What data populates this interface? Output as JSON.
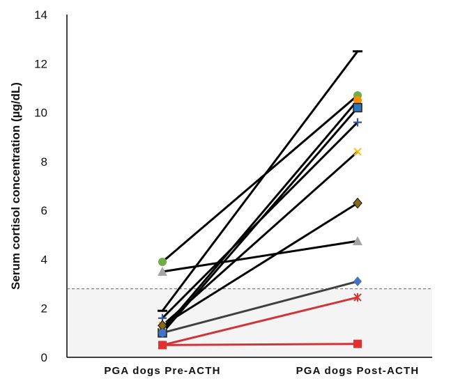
{
  "chart_data": {
    "type": "line",
    "title": "",
    "xlabel": "",
    "ylabel": "Serum cortisol concentration (µg/dL)",
    "categories": [
      "PGA dogs Pre-ACTH",
      "PGA dogs Post-ACTH"
    ],
    "ylim": [
      0,
      14
    ],
    "yticks": [
      0,
      2,
      4,
      6,
      8,
      10,
      12,
      14
    ],
    "threshold": {
      "value": 2.8,
      "style": "dashed",
      "shaded_below": true,
      "shade_color": "#f4f4f4"
    },
    "grid": false,
    "legend": "none",
    "series": [
      {
        "values": [
          1.9,
          12.5
        ],
        "marker": "dash",
        "color": "#000000",
        "line_color": "#000000"
      },
      {
        "values": [
          3.9,
          10.7
        ],
        "marker": "circle",
        "color": "#70ad47",
        "line_color": "#000000"
      },
      {
        "values": [
          1.1,
          10.5
        ],
        "marker": "circle",
        "color": "#ff8c00",
        "line_color": "#000000"
      },
      {
        "values": [
          1.0,
          10.2
        ],
        "marker": "square",
        "color": "#2e75b6",
        "line_color": "#000000"
      },
      {
        "values": [
          1.6,
          9.6
        ],
        "marker": "plus",
        "color": "#2f5597",
        "line_color": "#000000"
      },
      {
        "values": [
          1.3,
          8.4
        ],
        "marker": "x",
        "color": "#ffc000",
        "line_color": "#000000"
      },
      {
        "values": [
          1.3,
          6.3
        ],
        "marker": "diamond",
        "color": "#8b6914",
        "line_color": "#000000"
      },
      {
        "values": [
          3.5,
          4.75
        ],
        "marker": "triangle",
        "color": "#a5a5a5",
        "line_color": "#000000"
      },
      {
        "values": [
          1.0,
          3.1
        ],
        "marker": "diamond",
        "color": "#4472c4",
        "line_color": "#404040"
      },
      {
        "values": [
          0.5,
          2.45
        ],
        "marker": "star",
        "color": "#e03030",
        "line_color": "#d13438"
      },
      {
        "values": [
          0.5,
          0.55
        ],
        "marker": "square",
        "color": "#e03030",
        "line_color": "#d13438"
      }
    ]
  }
}
